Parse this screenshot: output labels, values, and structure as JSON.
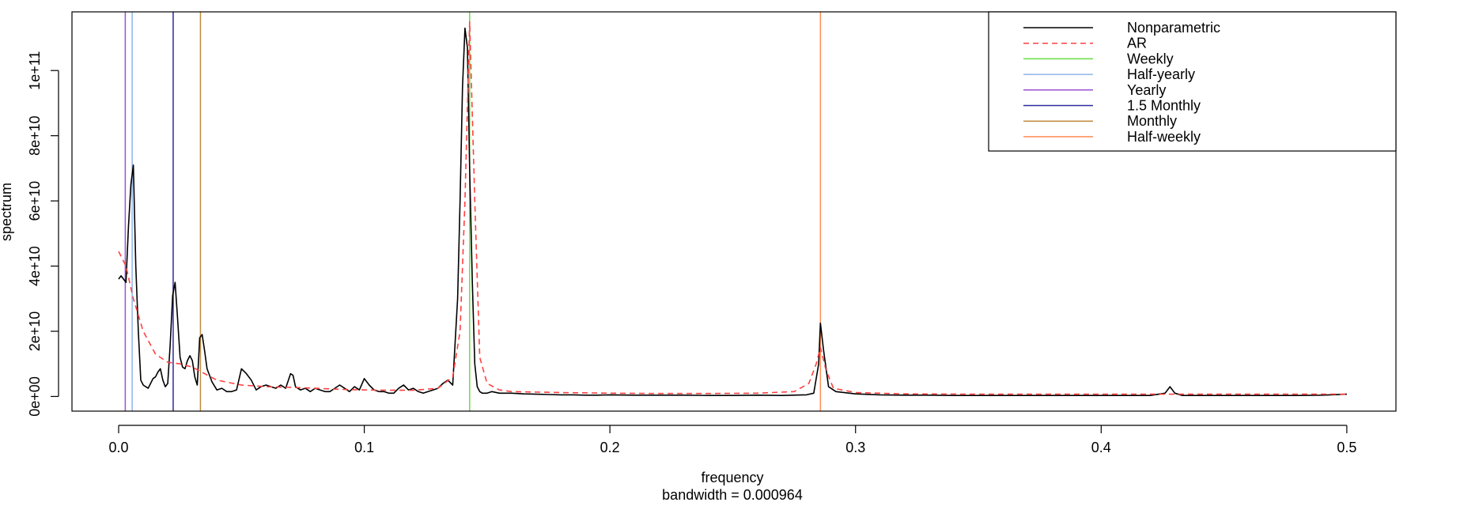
{
  "chart_data": {
    "type": "line",
    "xlabel": "frequency",
    "sublabel": "bandwidth = 0.000964",
    "ylabel": "spectrum",
    "xlim": [
      -0.019,
      0.52
    ],
    "ylim": [
      -4500000000,
      118000000000
    ],
    "x_ticks": [
      0.0,
      0.1,
      0.2,
      0.3,
      0.4,
      0.5
    ],
    "x_tick_labels": [
      "0.0",
      "0.1",
      "0.2",
      "0.3",
      "0.4",
      "0.5"
    ],
    "y_ticks": [
      0,
      20000000000,
      40000000000,
      60000000000,
      80000000000,
      100000000000
    ],
    "y_tick_labels": [
      "0e+00",
      "2e+10",
      "4e+10",
      "6e+10",
      "8e+10",
      "1e+11"
    ],
    "grid": false,
    "legend_position": "top-right",
    "legend": [
      {
        "label": "Nonparametric",
        "color": "#000000",
        "dash": "solid"
      },
      {
        "label": "AR",
        "color": "#ff4040",
        "dash": "dashed"
      },
      {
        "label": "Weekly",
        "color": "#66dd44",
        "dash": "solid"
      },
      {
        "label": "Half-yearly",
        "color": "#8fb4e8",
        "dash": "solid"
      },
      {
        "label": "Yearly",
        "color": "#9b4fd6",
        "dash": "solid"
      },
      {
        "label": "1.5 Monthly",
        "color": "#2b2b9e",
        "dash": "solid"
      },
      {
        "label": "Monthly",
        "color": "#c08a3e",
        "dash": "solid"
      },
      {
        "label": "Half-weekly",
        "color": "#ff8c55",
        "dash": "solid"
      }
    ],
    "vlines": [
      {
        "name": "Weekly",
        "x": 0.1429,
        "color": "#66dd44"
      },
      {
        "name": "Half-yearly",
        "x": 0.0055,
        "color": "#8fb4e8"
      },
      {
        "name": "Yearly",
        "x": 0.0027,
        "color": "#9b4fd6"
      },
      {
        "name": "1.5 Monthly",
        "x": 0.0222,
        "color": "#2b2b9e"
      },
      {
        "name": "Monthly",
        "x": 0.0333,
        "color": "#c08a3e"
      },
      {
        "name": "Half-weekly",
        "x": 0.2857,
        "color": "#ff8c55"
      }
    ],
    "series": [
      {
        "name": "Nonparametric",
        "color": "#000000",
        "x": [
          0.0,
          0.001,
          0.002,
          0.003,
          0.004,
          0.005,
          0.006,
          0.007,
          0.008,
          0.009,
          0.01,
          0.011,
          0.012,
          0.013,
          0.014,
          0.015,
          0.016,
          0.017,
          0.018,
          0.019,
          0.02,
          0.021,
          0.022,
          0.023,
          0.024,
          0.025,
          0.026,
          0.027,
          0.028,
          0.029,
          0.03,
          0.031,
          0.032,
          0.033,
          0.034,
          0.035,
          0.036,
          0.038,
          0.04,
          0.042,
          0.044,
          0.046,
          0.048,
          0.05,
          0.052,
          0.054,
          0.056,
          0.058,
          0.06,
          0.062,
          0.064,
          0.066,
          0.068,
          0.07,
          0.071,
          0.072,
          0.074,
          0.076,
          0.078,
          0.08,
          0.082,
          0.084,
          0.086,
          0.088,
          0.09,
          0.092,
          0.094,
          0.096,
          0.098,
          0.1,
          0.102,
          0.104,
          0.106,
          0.108,
          0.11,
          0.112,
          0.114,
          0.116,
          0.118,
          0.12,
          0.122,
          0.124,
          0.126,
          0.128,
          0.13,
          0.132,
          0.134,
          0.136,
          0.138,
          0.139,
          0.14,
          0.141,
          0.142,
          0.1429,
          0.144,
          0.145,
          0.146,
          0.147,
          0.148,
          0.15,
          0.152,
          0.155,
          0.16,
          0.165,
          0.17,
          0.175,
          0.18,
          0.185,
          0.19,
          0.195,
          0.2,
          0.21,
          0.22,
          0.23,
          0.24,
          0.25,
          0.26,
          0.27,
          0.28,
          0.283,
          0.285,
          0.2857,
          0.287,
          0.289,
          0.292,
          0.3,
          0.31,
          0.32,
          0.33,
          0.34,
          0.35,
          0.36,
          0.37,
          0.38,
          0.39,
          0.4,
          0.41,
          0.42,
          0.426,
          0.428,
          0.43,
          0.433,
          0.44,
          0.45,
          0.46,
          0.47,
          0.48,
          0.49,
          0.5
        ],
        "y": [
          36000000000,
          37000000000,
          36000000000,
          35000000000,
          52000000000,
          65000000000,
          71000000000,
          40000000000,
          20000000000,
          5000000000,
          3500000000,
          3000000000,
          2500000000,
          4000000000,
          5500000000,
          6000000000,
          7500000000,
          8500000000,
          5000000000,
          3000000000,
          4000000000,
          16000000000,
          31000000000,
          35000000000,
          24000000000,
          12000000000,
          9000000000,
          8500000000,
          11000000000,
          12500000000,
          11000000000,
          6000000000,
          3500000000,
          18000000000,
          19000000000,
          14000000000,
          8500000000,
          4500000000,
          2000000000,
          2500000000,
          1500000000,
          1500000000,
          2000000000,
          8500000000,
          7000000000,
          5000000000,
          2000000000,
          3000000000,
          3500000000,
          3000000000,
          2500000000,
          3500000000,
          2500000000,
          7000000000,
          6500000000,
          3000000000,
          2000000000,
          2500000000,
          1500000000,
          2500000000,
          2000000000,
          1500000000,
          1500000000,
          2500000000,
          3500000000,
          2500000000,
          1500000000,
          3000000000,
          2000000000,
          5500000000,
          3500000000,
          2000000000,
          1500000000,
          1500000000,
          1000000000,
          1000000000,
          2500000000,
          3500000000,
          2000000000,
          2500000000,
          1500000000,
          1000000000,
          1500000000,
          2000000000,
          2500000000,
          4000000000,
          5000000000,
          3500000000,
          30000000000,
          60000000000,
          95000000000,
          113000000000,
          107000000000,
          70000000000,
          35000000000,
          10000000000,
          3000000000,
          1500000000,
          1000000000,
          1000000000,
          1500000000,
          1000000000,
          1000000000,
          800000000,
          700000000,
          600000000,
          500000000,
          500000000,
          400000000,
          400000000,
          500000000,
          400000000,
          400000000,
          400000000,
          300000000,
          300000000,
          400000000,
          300000000,
          500000000,
          1000000000,
          10000000000,
          22500000000,
          14000000000,
          3000000000,
          1500000000,
          800000000,
          500000000,
          400000000,
          400000000,
          300000000,
          300000000,
          300000000,
          300000000,
          300000000,
          300000000,
          300000000,
          300000000,
          300000000,
          1000000000,
          3000000000,
          1000000000,
          300000000,
          300000000,
          300000000,
          300000000,
          300000000,
          300000000,
          400000000,
          700000000
        ]
      },
      {
        "name": "AR",
        "color": "#ff4040",
        "dash": "dashed",
        "x": [
          0.0,
          0.003,
          0.006,
          0.01,
          0.015,
          0.02,
          0.025,
          0.03,
          0.035,
          0.04,
          0.05,
          0.06,
          0.07,
          0.08,
          0.09,
          0.1,
          0.11,
          0.12,
          0.13,
          0.136,
          0.139,
          0.141,
          0.1429,
          0.145,
          0.147,
          0.15,
          0.155,
          0.16,
          0.18,
          0.2,
          0.22,
          0.24,
          0.26,
          0.275,
          0.281,
          0.284,
          0.2857,
          0.288,
          0.291,
          0.3,
          0.32,
          0.35,
          0.4,
          0.45,
          0.5
        ],
        "y": [
          44500000000,
          40000000000,
          30000000000,
          20000000000,
          13000000000,
          10500000000,
          10000000000,
          9000000000,
          7000000000,
          5000000000,
          3500000000,
          3000000000,
          2800000000,
          2500000000,
          2200000000,
          2000000000,
          1900000000,
          1900000000,
          2500000000,
          6000000000,
          20000000000,
          60000000000,
          115000000000,
          60000000000,
          12000000000,
          4000000000,
          2000000000,
          1500000000,
          1200000000,
          1000000000,
          900000000,
          900000000,
          1000000000,
          1500000000,
          4000000000,
          10000000000,
          15000000000,
          8000000000,
          2500000000,
          1200000000,
          800000000,
          700000000,
          700000000,
          700000000,
          700000000
        ]
      }
    ]
  }
}
